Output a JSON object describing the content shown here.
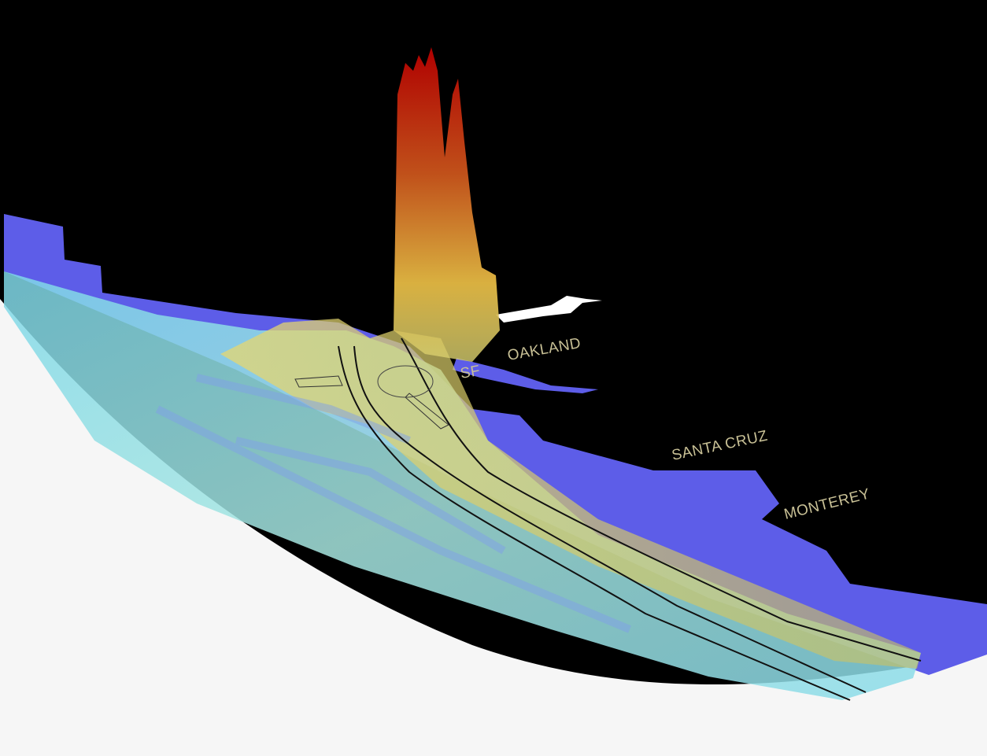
{
  "places": [
    {
      "label": "OAKLAND"
    },
    {
      "label": "SF"
    },
    {
      "label": "SANTA CRUZ"
    },
    {
      "label": "MONTEREY"
    }
  ]
}
